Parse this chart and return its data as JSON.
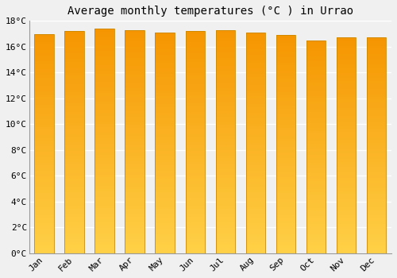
{
  "title": "Average monthly temperatures (°C ) in Urrao",
  "months": [
    "Jan",
    "Feb",
    "Mar",
    "Apr",
    "May",
    "Jun",
    "Jul",
    "Aug",
    "Sep",
    "Oct",
    "Nov",
    "Dec"
  ],
  "temperatures": [
    17.0,
    17.2,
    17.4,
    17.3,
    17.1,
    17.2,
    17.3,
    17.1,
    16.9,
    16.5,
    16.7,
    16.7
  ],
  "ylim": [
    0,
    18
  ],
  "yticks": [
    0,
    2,
    4,
    6,
    8,
    10,
    12,
    14,
    16,
    18
  ],
  "ytick_labels": [
    "0°C",
    "2°C",
    "4°C",
    "6°C",
    "8°C",
    "10°C",
    "12°C",
    "14°C",
    "16°C",
    "18°C"
  ],
  "background_color": "#f0f0f0",
  "grid_color": "#ffffff",
  "bar_color_bottom": "#FFD060",
  "bar_color_top": "#F59500",
  "bar_edge_color": "#cc8800",
  "title_fontsize": 10,
  "tick_fontsize": 8,
  "bar_width": 0.65,
  "figsize": [
    5.0,
    3.5
  ],
  "dpi": 100
}
